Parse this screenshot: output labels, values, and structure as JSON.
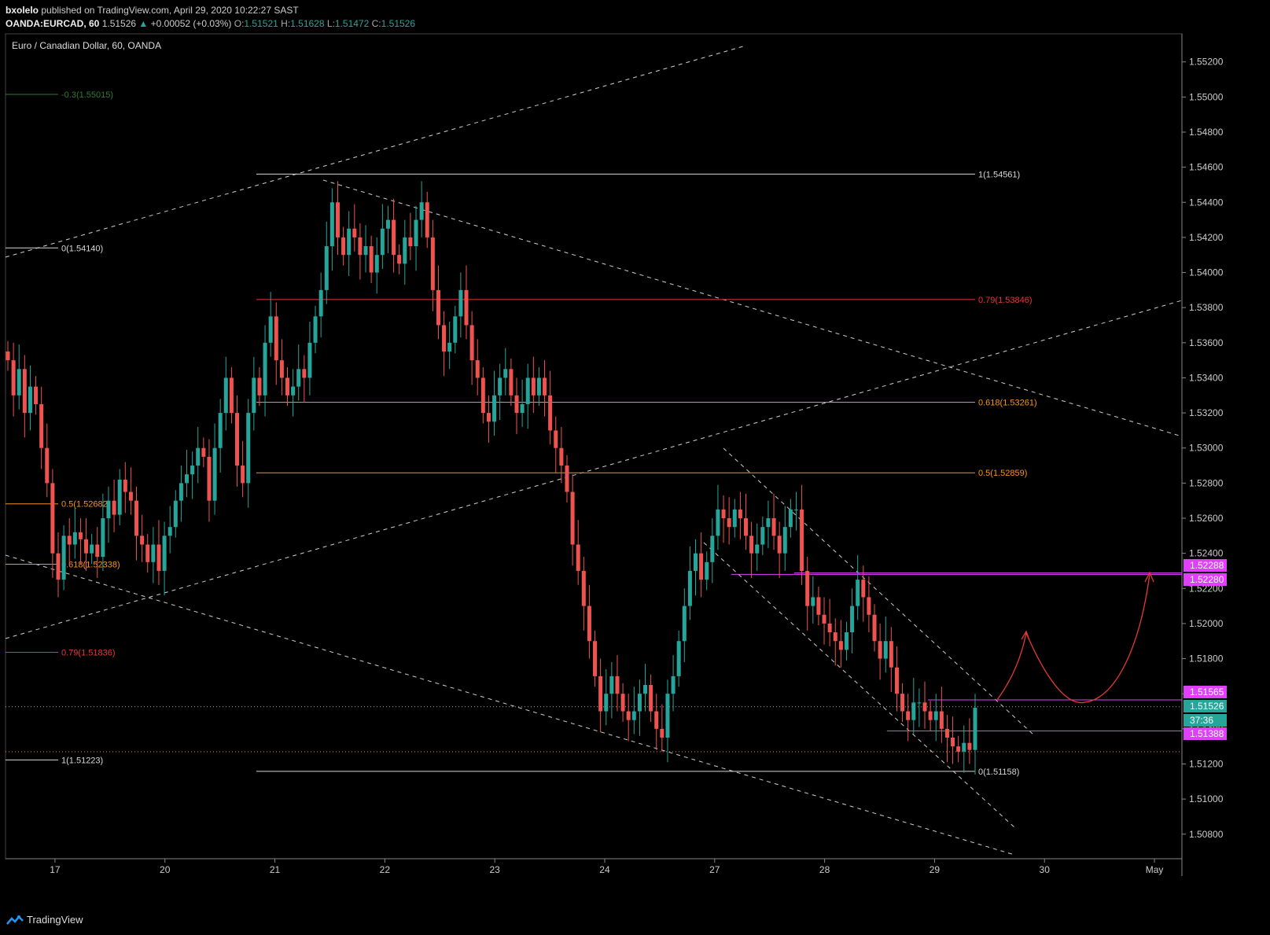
{
  "header": {
    "user": "bxolelo",
    "published": "published on TradingView.com, April 29, 2020 10:22:27 SAST",
    "symbol": "OANDA:EURCAD, 60",
    "last": "1.51526",
    "change": "+0.00052 (+0.03%)",
    "o_label": "O:",
    "o": "1.51521",
    "h_label": "H:",
    "h": "1.51628",
    "l_label": "L:",
    "l": "1.51472",
    "c_label": "C:",
    "c": "1.51526"
  },
  "footer": {
    "brand": "TradingView"
  },
  "colors": {
    "background": "#000000",
    "up": "#26a69a",
    "down": "#ef5350",
    "fib_white": "#d8d8d8",
    "fib_red": "#e53935",
    "fib_orange": "#f7931a",
    "fib_green": "#2e7d32",
    "magenta": "#e040fb",
    "trend": "#cfcfcf"
  },
  "chart_data": {
    "type": "candlestick",
    "title": "Euro / Canadian Dollar, 60, OANDA",
    "ylim": [
      1.5066,
      1.5226
    ],
    "y_ticks": [
      "1.55200",
      "1.55000",
      "1.54800",
      "1.54600",
      "1.54400",
      "1.54200",
      "1.54000",
      "1.53800",
      "1.53600",
      "1.53400",
      "1.53200",
      "1.53000",
      "1.52800",
      "1.52600",
      "1.52400",
      "1.52200",
      "1.52000",
      "1.51800",
      "1.51600",
      "1.51400",
      "1.51200",
      "1.51000",
      "1.50800"
    ],
    "x_ticks": [
      {
        "label": "17",
        "t": 4.0
      },
      {
        "label": "20",
        "t": 14.0
      },
      {
        "label": "21",
        "t": 24.0
      },
      {
        "label": "22",
        "t": 34.0
      },
      {
        "label": "23",
        "t": 44.0
      },
      {
        "label": "24",
        "t": 54.0
      },
      {
        "label": "27",
        "t": 64.0
      },
      {
        "label": "28",
        "t": 74.0
      },
      {
        "label": "29",
        "t": 84.0
      },
      {
        "label": "30",
        "t": 94.0
      },
      {
        "label": "May",
        "t": 104.0
      }
    ],
    "t_range": [
      -0.5,
      106.5
    ],
    "candles_close": [
      1.535,
      1.533,
      1.5345,
      1.532,
      1.5335,
      1.5325,
      1.53,
      1.528,
      1.524,
      1.5225,
      1.525,
      1.5245,
      1.5252,
      1.5248,
      1.524,
      1.5245,
      1.5238,
      1.526,
      1.527,
      1.5262,
      1.5282,
      1.5275,
      1.527,
      1.525,
      1.5245,
      1.5235,
      1.5245,
      1.523,
      1.525,
      1.5255,
      1.527,
      1.528,
      1.5285,
      1.529,
      1.53,
      1.5295,
      1.527,
      1.53,
      1.532,
      1.534,
      1.532,
      1.529,
      1.528,
      1.532,
      1.534,
      1.533,
      1.536,
      1.5375,
      1.535,
      1.534,
      1.533,
      1.5335,
      1.5345,
      1.534,
      1.536,
      1.5375,
      1.539,
      1.5415,
      1.544,
      1.542,
      1.541,
      1.5425,
      1.542,
      1.541,
      1.5415,
      1.54,
      1.541,
      1.5425,
      1.543,
      1.541,
      1.5405,
      1.542,
      1.5415,
      1.543,
      1.544,
      1.542,
      1.539,
      1.537,
      1.5355,
      1.536,
      1.5375,
      1.539,
      1.537,
      1.535,
      1.534,
      1.532,
      1.5315,
      1.533,
      1.534,
      1.5345,
      1.533,
      1.532,
      1.5325,
      1.534,
      1.533,
      1.534,
      1.533,
      1.531,
      1.53,
      1.529,
      1.5275,
      1.5245,
      1.523,
      1.521,
      1.519,
      1.517,
      1.515,
      1.516,
      1.517,
      1.516,
      1.515,
      1.5145,
      1.515,
      1.516,
      1.5165,
      1.515,
      1.514,
      1.5135,
      1.516,
      1.517,
      1.519,
      1.521,
      1.523,
      1.524,
      1.5225,
      1.5235,
      1.525,
      1.5265,
      1.526,
      1.5255,
      1.5265,
      1.526,
      1.525,
      1.524,
      1.5245,
      1.5255,
      1.526,
      1.525,
      1.524,
      1.5255,
      1.5265,
      1.5265,
      1.523,
      1.521,
      1.5215,
      1.5205,
      1.52,
      1.5195,
      1.519,
      1.5185,
      1.5195,
      1.521,
      1.5225,
      1.5215,
      1.5205,
      1.519,
      1.518,
      1.519,
      1.5175,
      1.516,
      1.515,
      1.5145,
      1.5155,
      1.5155,
      1.515,
      1.5145,
      1.515,
      1.514,
      1.5135,
      1.513,
      1.5127,
      1.5132,
      1.5128,
      1.5152
    ],
    "fib_right": [
      {
        "label": "1(1.54561)",
        "value": 1.54561,
        "color": "#d8d8d8"
      },
      {
        "label": "0.79(1.53846)",
        "value": 1.53846,
        "color": "#e53935"
      },
      {
        "label": "0.618(1.53261)",
        "value": 1.53261,
        "color": "#f7931a"
      },
      {
        "label": "0.5(1.52859)",
        "value": 1.52859,
        "color": "#f7931a"
      },
      {
        "label": "0(1.51158)",
        "value": 1.51158,
        "color": "#d8d8d8"
      }
    ],
    "fib_left": [
      {
        "label": "-0.3(1.55015)",
        "value": 1.55015,
        "color": "#2e7d32"
      },
      {
        "label": "0(1.54140)",
        "value": 1.5414,
        "color": "#d8d8d8"
      },
      {
        "label": "0.5(1.52682)",
        "value": 1.52682,
        "color": "#f7931a"
      },
      {
        "label": "0.618(1.52338)",
        "value": 1.52338,
        "color": "#f7931a"
      },
      {
        "label": "0.79(1.51836)",
        "value": 1.51836,
        "color": "#e53935"
      },
      {
        "label": "1(1.51223)",
        "value": 1.51223,
        "color": "#d8d8d8"
      }
    ],
    "price_tags": [
      {
        "label": "1.52288",
        "value": 1.52288,
        "color": "#e040fb"
      },
      {
        "label": "1.52280",
        "value": 1.5228,
        "color": "#e040fb"
      },
      {
        "label": "1.51565",
        "value": 1.51565,
        "color": "#e040fb"
      },
      {
        "label": "1.51526",
        "value": 1.51526,
        "color": "#26a69a"
      },
      {
        "label": "37:36",
        "value": 1.51455,
        "color": "#26a69a"
      },
      {
        "label": "1.51388",
        "value": 1.51388,
        "color": "#e040fb"
      }
    ]
  }
}
